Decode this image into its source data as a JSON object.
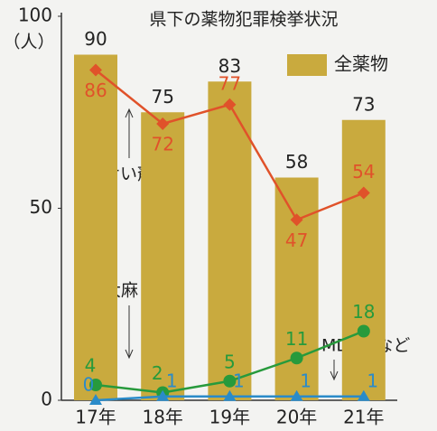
{
  "chart_data": {
    "type": "bar",
    "title": "県下の薬物犯罪検挙状況",
    "y_unit": "（人）",
    "categories": [
      "17年",
      "18年",
      "19年",
      "20年",
      "21年"
    ],
    "series": [
      {
        "name": "全薬物",
        "type": "bar",
        "color": "#c9aa3e",
        "values": [
          90,
          75,
          83,
          58,
          73
        ]
      },
      {
        "name": "覚せい剤",
        "type": "line",
        "marker": "diamond",
        "color": "#e0522a",
        "values": [
          86,
          72,
          77,
          47,
          54
        ]
      },
      {
        "name": "大麻",
        "type": "line",
        "marker": "circle",
        "color": "#279a3c",
        "values": [
          4,
          2,
          5,
          11,
          18
        ]
      },
      {
        "name": "MDMAなど",
        "type": "line",
        "marker": "triangle",
        "color": "#2a8bc9",
        "values": [
          0,
          1,
          1,
          1,
          1
        ]
      }
    ],
    "ylim": [
      0,
      100
    ],
    "yticks": [
      0,
      50,
      100
    ],
    "grid": false
  }
}
